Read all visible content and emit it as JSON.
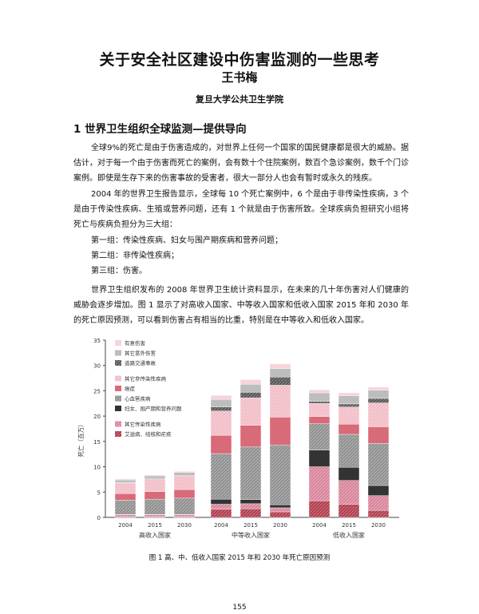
{
  "paper": {
    "title": "关于安全社区建设中伤害监测的一些思考",
    "author": "王书梅",
    "affiliation": "复旦大学公共卫生学院",
    "section_heading": "1  世界卫生组织全球监测—提供导向",
    "paragraphs": [
      "全球9%的死亡是由于伤害造成的，对世界上任何一个国家的国民健康都是很大的威胁。据估计，对于每一个由于伤害而死亡的案例，会有数十个住院案例，数百个急诊案例，数千个门诊案例。即使是生存下来的伤害事故的受害者，很大一部分人也会有暂时或永久的残疾。",
      "2004 年的世界卫生报告显示，全球每 10 个死亡案例中，6 个是由于非传染性疾病，3 个是由于传染性疾病、生殖或营养问题，还有 1 个就是由于伤害所致。全球疾病负担研究小组将死亡与疾病负担分为三大组：",
      "第一组：传染性疾病、妇女与围产期疾病和营养问题；",
      "第二组：非传染性疾病；",
      "第三组：伤害。",
      "世界卫生组织发布的 2008 年世界卫生统计资料显示，在未来的几十年伤害对人们健康的威胁会逐步增加。图 1 显示了对高收入国家、中等收入国家和低收入国家 2015 年和 2030 年的死亡原因预测，可以看到伤害占有相当的比重，特别是在中等收入和低收入国家。"
    ],
    "figure_caption": "图 1  高、中、低收入国家 2015 年和 2030 年死亡原因预测",
    "page_number": "155"
  },
  "chart_data": {
    "type": "bar",
    "stacked": true,
    "ylabel": "死亡（百万）",
    "ylim": [
      0,
      35
    ],
    "yticks": [
      0,
      5,
      10,
      15,
      20,
      25,
      30,
      35
    ],
    "groups": [
      {
        "label": "高收入国家",
        "years": [
          "2004",
          "2015",
          "2030"
        ]
      },
      {
        "label": "中等收入国家",
        "years": [
          "2004",
          "2015",
          "2030"
        ]
      },
      {
        "label": "低收入国家",
        "years": [
          "2004",
          "2015",
          "2030"
        ]
      }
    ],
    "series": [
      {
        "name": "艾滋病、结核和疟疾",
        "color": "#b03a4a",
        "hatch": true,
        "values": [
          0.1,
          0.1,
          0.1,
          1.6,
          1.7,
          1.1,
          3.3,
          2.6,
          1.4
        ]
      },
      {
        "name": "其它传染性疾病",
        "color": "#d9839a",
        "hatch": true,
        "values": [
          0.4,
          0.4,
          0.4,
          1.0,
          1.0,
          0.8,
          6.7,
          4.7,
          2.9
        ]
      },
      {
        "name": "妇女、围产期和营养问题",
        "color": "#333333",
        "values": [
          0.1,
          0.1,
          0.1,
          1.0,
          0.8,
          0.6,
          3.3,
          2.6,
          2.0
        ]
      },
      {
        "name": "心血管疾病",
        "color": "#8f8f8f",
        "hatch": true,
        "values": [
          2.8,
          3.0,
          3.2,
          9.0,
          10.4,
          11.8,
          5.2,
          6.5,
          8.3
        ]
      },
      {
        "name": "癌症",
        "color": "#d96a78",
        "values": [
          1.3,
          1.5,
          1.7,
          3.6,
          4.3,
          5.5,
          1.4,
          2.0,
          3.3
        ]
      },
      {
        "name": "其它非传染性疾病",
        "color": "#f2bcc6",
        "hatch": true,
        "values": [
          2.1,
          2.4,
          2.7,
          4.8,
          5.4,
          6.3,
          2.6,
          3.4,
          4.7
        ]
      },
      {
        "name": "道路交通事故",
        "color": "#555555",
        "hatch": true,
        "values": [
          0.1,
          0.1,
          0.1,
          0.8,
          1.1,
          1.6,
          0.4,
          0.6,
          0.9
        ]
      },
      {
        "name": "其它意外伤害",
        "color": "#bdbdbd",
        "values": [
          0.5,
          0.6,
          0.6,
          1.5,
          1.6,
          1.7,
          1.7,
          1.6,
          1.6
        ]
      },
      {
        "name": "有意伤害",
        "color": "#f7d3da",
        "values": [
          0.2,
          0.2,
          0.2,
          0.8,
          0.9,
          0.9,
          0.6,
          0.6,
          0.6
        ]
      }
    ]
  }
}
